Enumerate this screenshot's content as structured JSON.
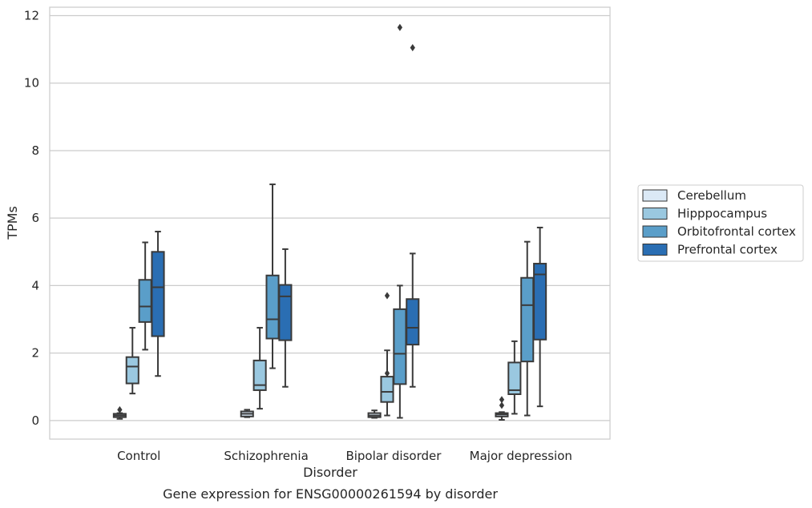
{
  "chart_data": {
    "type": "box",
    "title": "",
    "caption": "Gene expression for ENSG00000261594 by disorder",
    "xlabel": "Disorder",
    "ylabel": "TPMs",
    "ylim": [
      -0.55,
      12.25
    ],
    "yticks": [
      0,
      2,
      4,
      6,
      8,
      10,
      12
    ],
    "grid": "horizontal",
    "legend_position": "right",
    "categories": [
      "Control",
      "Schizophrenia",
      "Bipolar disorder",
      "Major depression"
    ],
    "series": [
      {
        "name": "Cerebellum",
        "color": "#dbe9f6",
        "boxes": [
          {
            "whisker_low": 0.05,
            "q1": 0.1,
            "median": 0.15,
            "q3": 0.2,
            "whisker_high": 0.22,
            "outliers": [
              0.32
            ]
          },
          {
            "whisker_low": 0.1,
            "q1": 0.12,
            "median": 0.2,
            "q3": 0.27,
            "whisker_high": 0.32,
            "outliers": []
          },
          {
            "whisker_low": 0.08,
            "q1": 0.1,
            "median": 0.15,
            "q3": 0.22,
            "whisker_high": 0.3,
            "outliers": []
          },
          {
            "whisker_low": 0.02,
            "q1": 0.12,
            "median": 0.18,
            "q3": 0.22,
            "whisker_high": 0.25,
            "outliers": [
              0.45,
              0.62
            ]
          }
        ]
      },
      {
        "name": "Hipppocampus",
        "color": "#9ac8e0",
        "boxes": [
          {
            "whisker_low": 0.8,
            "q1": 1.1,
            "median": 1.6,
            "q3": 1.88,
            "whisker_high": 2.75,
            "outliers": []
          },
          {
            "whisker_low": 0.35,
            "q1": 0.9,
            "median": 1.05,
            "q3": 1.78,
            "whisker_high": 2.75,
            "outliers": []
          },
          {
            "whisker_low": 0.15,
            "q1": 0.55,
            "median": 0.85,
            "q3": 1.3,
            "whisker_high": 2.08,
            "outliers": [
              1.4,
              3.7
            ]
          },
          {
            "whisker_low": 0.2,
            "q1": 0.78,
            "median": 0.9,
            "q3": 1.72,
            "whisker_high": 2.35,
            "outliers": []
          }
        ]
      },
      {
        "name": "Orbitofrontal cortex",
        "color": "#5a9ec9",
        "boxes": [
          {
            "whisker_low": 2.1,
            "q1": 2.92,
            "median": 3.38,
            "q3": 4.17,
            "whisker_high": 5.28,
            "outliers": []
          },
          {
            "whisker_low": 1.55,
            "q1": 2.43,
            "median": 3.0,
            "q3": 4.3,
            "whisker_high": 7.0,
            "outliers": []
          },
          {
            "whisker_low": 0.08,
            "q1": 1.08,
            "median": 1.98,
            "q3": 3.3,
            "whisker_high": 4.0,
            "outliers": [
              11.65
            ]
          },
          {
            "whisker_low": 0.15,
            "q1": 1.75,
            "median": 3.42,
            "q3": 4.23,
            "whisker_high": 5.3,
            "outliers": []
          }
        ]
      },
      {
        "name": "Prefrontal cortex",
        "color": "#2a6eb3",
        "boxes": [
          {
            "whisker_low": 1.32,
            "q1": 2.5,
            "median": 3.95,
            "q3": 5.0,
            "whisker_high": 5.6,
            "outliers": []
          },
          {
            "whisker_low": 1.0,
            "q1": 2.38,
            "median": 3.68,
            "q3": 4.02,
            "whisker_high": 5.08,
            "outliers": []
          },
          {
            "whisker_low": 1.0,
            "q1": 2.25,
            "median": 2.75,
            "q3": 3.6,
            "whisker_high": 4.95,
            "outliers": [
              11.05
            ]
          },
          {
            "whisker_low": 0.42,
            "q1": 2.4,
            "median": 4.33,
            "q3": 4.65,
            "whisker_high": 5.72,
            "outliers": []
          }
        ]
      }
    ]
  }
}
